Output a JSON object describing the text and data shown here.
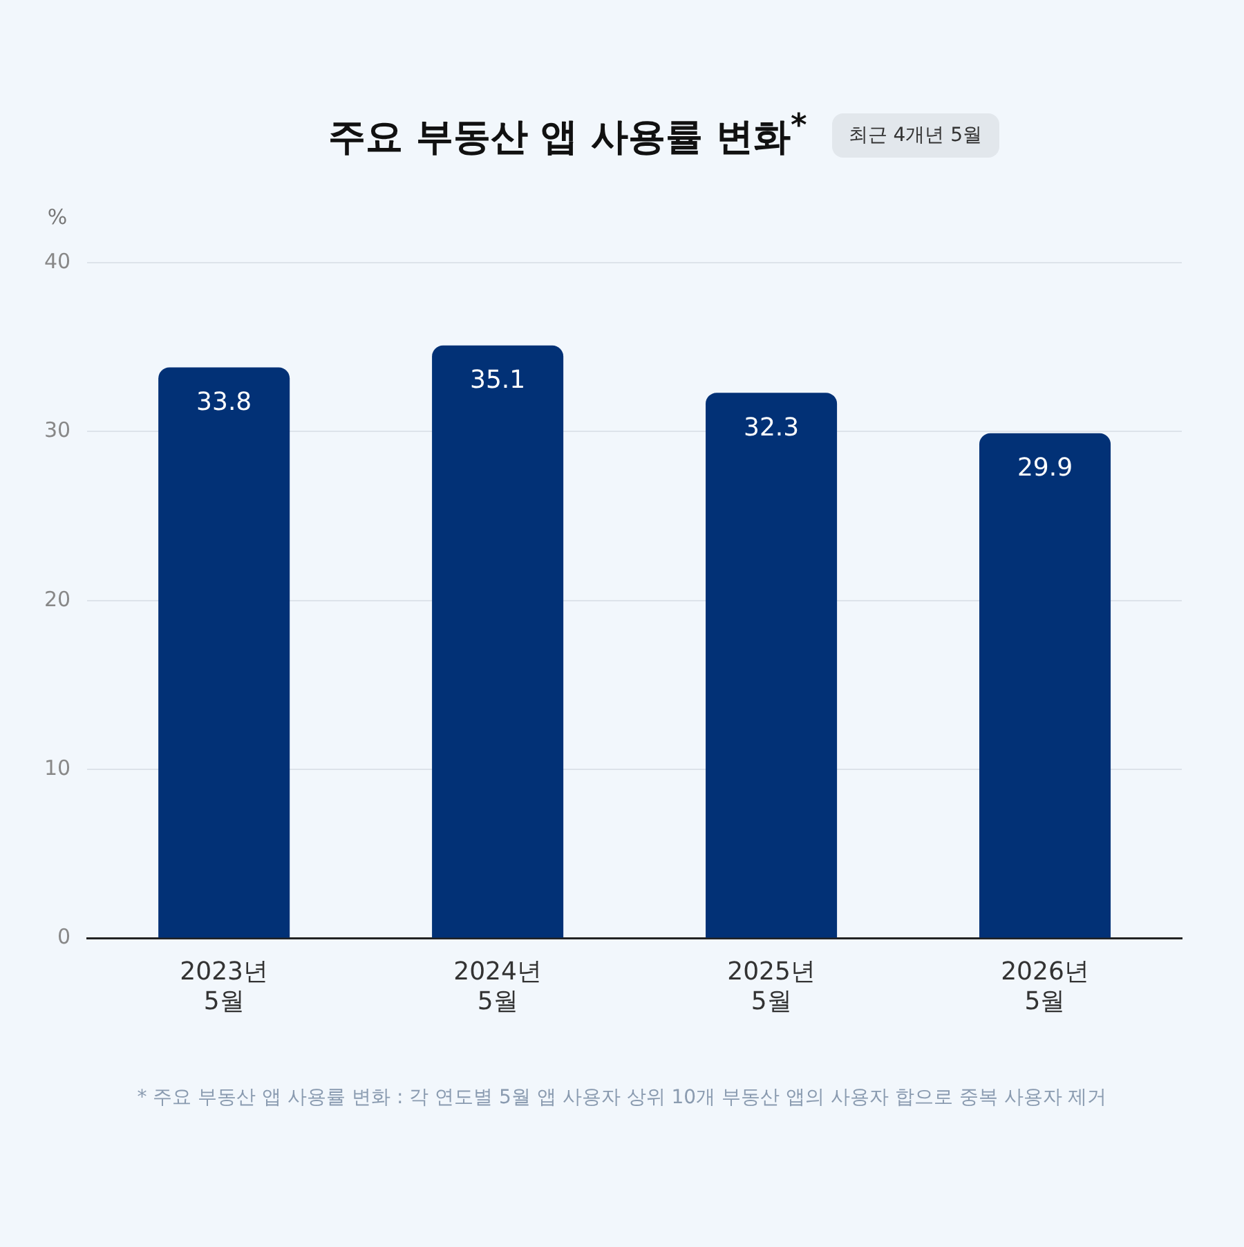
{
  "chart_data": {
    "type": "bar",
    "title": "주요 부동산 앱 사용률 변화$^{*}$",
    "subtitle": "최근 4개년 5월",
    "ylabel": "%",
    "categories": [
      "2023년\n5월",
      "2024년\n5월",
      "2025년\n5월",
      "2026년\n5월"
    ],
    "values": [
      33.8,
      35.1,
      32.3,
      29.9
    ],
    "color": "#023176",
    "ylim": [
      0,
      40
    ],
    "yticks": [
      0,
      10,
      20,
      30,
      40
    ],
    "grid": "y",
    "data_labels": true,
    "annotations": [
      "* 주요 부동산 앱 사용률 변화 : 각 연도별 5월 앱 사용자 상위 10개 부동산 앱의 사용자 합으로 중복 사용자 제거"
    ]
  }
}
